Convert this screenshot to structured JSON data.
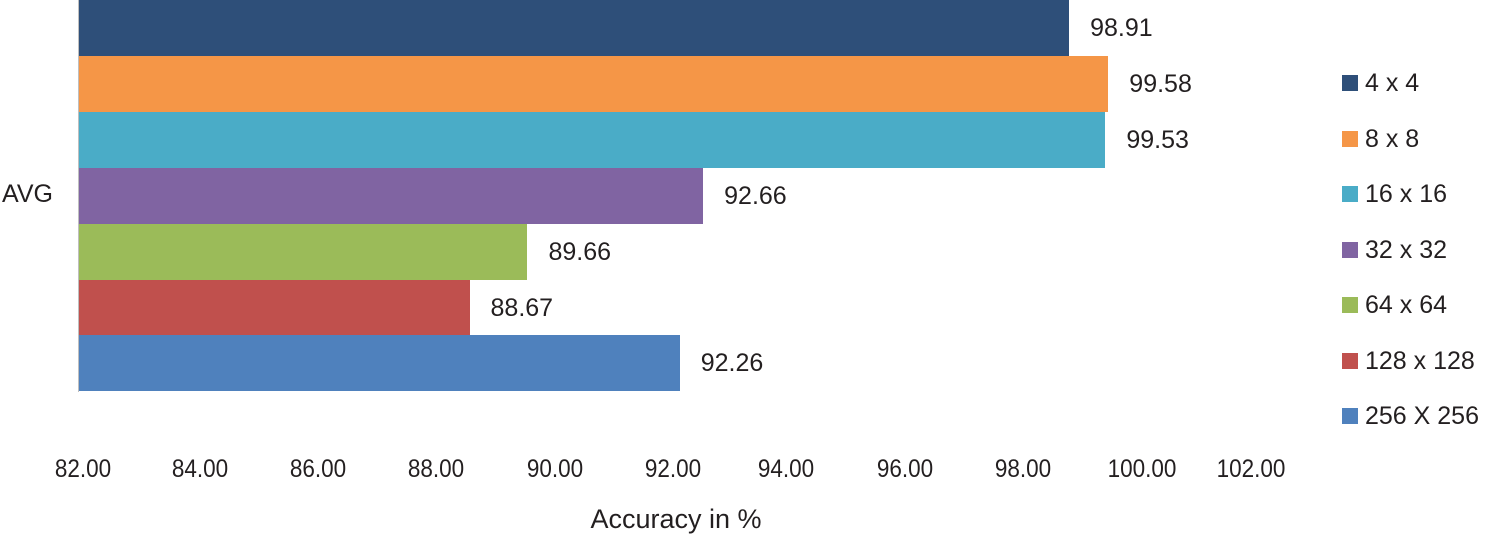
{
  "chart_data": {
    "type": "bar",
    "orientation": "horizontal",
    "title": "",
    "categories": [
      "AVG"
    ],
    "series": [
      {
        "name": "4 x 4",
        "values": [
          98.91
        ],
        "color": "#2e4f79"
      },
      {
        "name": "8 x 8",
        "values": [
          99.58
        ],
        "color": "#f59647"
      },
      {
        "name": "16 x 16",
        "values": [
          99.53
        ],
        "color": "#4aacc7"
      },
      {
        "name": "32 x 32",
        "values": [
          92.66
        ],
        "color": "#8064a2"
      },
      {
        "name": "64 x 64",
        "values": [
          89.66
        ],
        "color": "#9bbb59"
      },
      {
        "name": "128 x 128",
        "values": [
          88.67
        ],
        "color": "#c0504d"
      },
      {
        "name": "256 X 256",
        "values": [
          92.26
        ],
        "color": "#4f81bd"
      }
    ],
    "xlabel": "Accuracy in %",
    "ylabel": "",
    "xlim": [
      82,
      102
    ],
    "xticks": [
      "82.00",
      "84.00",
      "86.00",
      "88.00",
      "90.00",
      "92.00",
      "94.00",
      "96.00",
      "98.00",
      "100.00",
      "102.00"
    ],
    "data_labels": [
      "98.91",
      "99.58",
      "99.53",
      "92.66",
      "89.66",
      "88.67",
      "92.26"
    ],
    "grid": false,
    "legend_position": "right"
  }
}
